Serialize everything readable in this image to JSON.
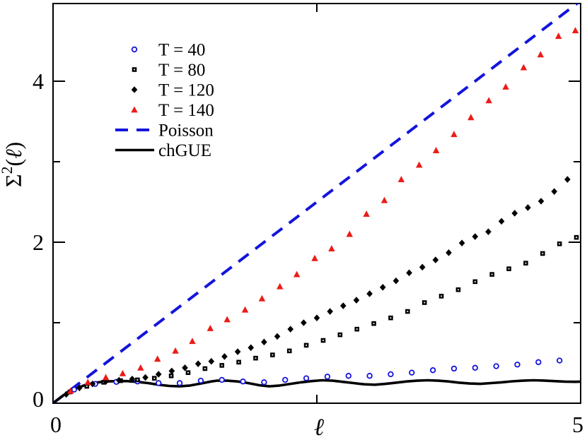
{
  "figure": {
    "background": "#ffffff",
    "description": "Number variance Sigma^2(l) versus l for Dirac spectra at several temperatures compared with Poisson and chGUE predictions"
  },
  "chart_data": {
    "type": "scatter",
    "title": "",
    "xlabel": "ℓ",
    "ylabel": "Σ²(ℓ)",
    "ylabel_parts": {
      "base": "Σ",
      "sup": "2",
      "rest": "(",
      "ell": "ℓ",
      "close": ")"
    },
    "xlim": [
      0,
      5
    ],
    "ylim": [
      0,
      4.965
    ],
    "grid": false,
    "axes": {
      "x_ticks": {
        "major": [
          0,
          5
        ],
        "major_labels": [
          "0",
          "5"
        ],
        "minor": [
          2.5
        ]
      },
      "y_ticks": {
        "major": [
          0,
          2,
          4
        ],
        "major_labels": [
          "0",
          "2",
          "4"
        ],
        "minor": [
          1,
          3
        ]
      },
      "mirror_ticks": true
    },
    "colors": {
      "blue": "#1414dd",
      "red": "#ec1b17",
      "black": "#000000"
    },
    "legend": {
      "position": "upper-left"
    },
    "series": [
      {
        "name": "T = 40",
        "type": "scatter",
        "marker": "circle-open",
        "color": "#1414dd",
        "points": [
          [
            0.2,
            0.17
          ],
          [
            0.4,
            0.24
          ],
          [
            0.6,
            0.265
          ],
          [
            0.8,
            0.27
          ],
          [
            1.0,
            0.25
          ],
          [
            1.2,
            0.25
          ],
          [
            1.4,
            0.28
          ],
          [
            1.6,
            0.29
          ],
          [
            1.8,
            0.27
          ],
          [
            2.0,
            0.26
          ],
          [
            2.2,
            0.29
          ],
          [
            2.4,
            0.31
          ],
          [
            2.6,
            0.33
          ],
          [
            2.8,
            0.34
          ],
          [
            3.0,
            0.34
          ],
          [
            3.2,
            0.36
          ],
          [
            3.4,
            0.38
          ],
          [
            3.6,
            0.41
          ],
          [
            3.8,
            0.43
          ],
          [
            4.0,
            0.44
          ],
          [
            4.2,
            0.46
          ],
          [
            4.4,
            0.48
          ],
          [
            4.6,
            0.51
          ],
          [
            4.8,
            0.53
          ]
        ]
      },
      {
        "name": "T = 80",
        "type": "scatter",
        "marker": "square",
        "color": "#000000",
        "points": [
          [
            0.16,
            0.14
          ],
          [
            0.32,
            0.21
          ],
          [
            0.48,
            0.26
          ],
          [
            0.64,
            0.28
          ],
          [
            0.8,
            0.29
          ],
          [
            0.96,
            0.31
          ],
          [
            1.12,
            0.34
          ],
          [
            1.28,
            0.38
          ],
          [
            1.44,
            0.43
          ],
          [
            1.6,
            0.47
          ],
          [
            1.76,
            0.51
          ],
          [
            1.92,
            0.56
          ],
          [
            2.08,
            0.6
          ],
          [
            2.24,
            0.65
          ],
          [
            2.4,
            0.72
          ],
          [
            2.56,
            0.78
          ],
          [
            2.72,
            0.85
          ],
          [
            2.88,
            0.92
          ],
          [
            3.04,
            0.99
          ],
          [
            3.2,
            1.06
          ],
          [
            3.36,
            1.14
          ],
          [
            3.52,
            1.25
          ],
          [
            3.68,
            1.33
          ],
          [
            3.84,
            1.41
          ],
          [
            4.0,
            1.51
          ],
          [
            4.16,
            1.6
          ],
          [
            4.32,
            1.67
          ],
          [
            4.48,
            1.74
          ],
          [
            4.64,
            1.86
          ],
          [
            4.8,
            1.98
          ],
          [
            4.96,
            2.06
          ]
        ]
      },
      {
        "name": "T = 120",
        "type": "scatter",
        "marker": "diamond",
        "color": "#000000",
        "points": [
          [
            0.125,
            0.11
          ],
          [
            0.25,
            0.19
          ],
          [
            0.375,
            0.24
          ],
          [
            0.5,
            0.27
          ],
          [
            0.625,
            0.285
          ],
          [
            0.75,
            0.3
          ],
          [
            0.875,
            0.32
          ],
          [
            1.0,
            0.36
          ],
          [
            1.125,
            0.4
          ],
          [
            1.25,
            0.44
          ],
          [
            1.375,
            0.49
          ],
          [
            1.5,
            0.52
          ],
          [
            1.625,
            0.58
          ],
          [
            1.75,
            0.64
          ],
          [
            1.875,
            0.69
          ],
          [
            2.0,
            0.76
          ],
          [
            2.125,
            0.83
          ],
          [
            2.25,
            0.92
          ],
          [
            2.375,
            1.0
          ],
          [
            2.5,
            1.06
          ],
          [
            2.625,
            1.14
          ],
          [
            2.75,
            1.21
          ],
          [
            2.875,
            1.28
          ],
          [
            3.0,
            1.36
          ],
          [
            3.125,
            1.44
          ],
          [
            3.25,
            1.52
          ],
          [
            3.375,
            1.62
          ],
          [
            3.5,
            1.69
          ],
          [
            3.625,
            1.78
          ],
          [
            3.75,
            1.87
          ],
          [
            3.875,
            1.99
          ],
          [
            4.0,
            2.07
          ],
          [
            4.125,
            2.13
          ],
          [
            4.25,
            2.26
          ],
          [
            4.375,
            2.36
          ],
          [
            4.5,
            2.43
          ],
          [
            4.625,
            2.51
          ],
          [
            4.75,
            2.63
          ],
          [
            4.875,
            2.78
          ]
        ]
      },
      {
        "name": "T = 140",
        "type": "scatter",
        "marker": "triangle-up",
        "color": "#ec1b17",
        "points": [
          [
            0.165,
            0.15
          ],
          [
            0.33,
            0.26
          ],
          [
            0.5,
            0.32
          ],
          [
            0.66,
            0.37
          ],
          [
            0.83,
            0.44
          ],
          [
            0.99,
            0.55
          ],
          [
            1.16,
            0.65
          ],
          [
            1.32,
            0.77
          ],
          [
            1.49,
            0.93
          ],
          [
            1.65,
            1.04
          ],
          [
            1.82,
            1.16
          ],
          [
            1.98,
            1.3
          ],
          [
            2.15,
            1.45
          ],
          [
            2.31,
            1.6
          ],
          [
            2.48,
            1.8
          ],
          [
            2.64,
            1.92
          ],
          [
            2.81,
            2.1
          ],
          [
            2.97,
            2.35
          ],
          [
            3.14,
            2.52
          ],
          [
            3.3,
            2.78
          ],
          [
            3.47,
            2.96
          ],
          [
            3.63,
            3.14
          ],
          [
            3.8,
            3.34
          ],
          [
            3.96,
            3.55
          ],
          [
            4.13,
            3.76
          ],
          [
            4.29,
            3.93
          ],
          [
            4.46,
            4.17
          ],
          [
            4.62,
            4.33
          ],
          [
            4.79,
            4.56
          ],
          [
            4.95,
            4.63
          ]
        ]
      },
      {
        "name": "Poisson",
        "type": "line",
        "style": "dashed",
        "color": "#1414dd",
        "points": [
          [
            0,
            0
          ],
          [
            5,
            5
          ]
        ]
      },
      {
        "name": "chGUE",
        "type": "line",
        "style": "solid",
        "color": "#000000",
        "points": [
          [
            0,
            0
          ],
          [
            0.05,
            0.05
          ],
          [
            0.1,
            0.1
          ],
          [
            0.15,
            0.145
          ],
          [
            0.2,
            0.175
          ],
          [
            0.3,
            0.225
          ],
          [
            0.4,
            0.255
          ],
          [
            0.5,
            0.27
          ],
          [
            0.6,
            0.275
          ],
          [
            0.7,
            0.275
          ],
          [
            0.8,
            0.265
          ],
          [
            0.9,
            0.25
          ],
          [
            1.0,
            0.23
          ],
          [
            1.1,
            0.215
          ],
          [
            1.2,
            0.21
          ],
          [
            1.3,
            0.22
          ],
          [
            1.4,
            0.245
          ],
          [
            1.5,
            0.27
          ],
          [
            1.55,
            0.28
          ],
          [
            1.65,
            0.28
          ],
          [
            1.75,
            0.27
          ],
          [
            1.85,
            0.25
          ],
          [
            1.95,
            0.225
          ],
          [
            2.05,
            0.21
          ],
          [
            2.15,
            0.22
          ],
          [
            2.25,
            0.24
          ],
          [
            2.35,
            0.26
          ],
          [
            2.45,
            0.275
          ],
          [
            2.55,
            0.285
          ],
          [
            2.65,
            0.28
          ],
          [
            2.75,
            0.265
          ],
          [
            2.85,
            0.25
          ],
          [
            2.95,
            0.235
          ],
          [
            3.05,
            0.23
          ],
          [
            3.15,
            0.24
          ],
          [
            3.25,
            0.255
          ],
          [
            3.35,
            0.27
          ],
          [
            3.45,
            0.28
          ],
          [
            3.55,
            0.285
          ],
          [
            3.65,
            0.28
          ],
          [
            3.75,
            0.27
          ],
          [
            3.85,
            0.255
          ],
          [
            3.95,
            0.245
          ],
          [
            4.05,
            0.24
          ],
          [
            4.15,
            0.25
          ],
          [
            4.25,
            0.26
          ],
          [
            4.35,
            0.272
          ],
          [
            4.45,
            0.28
          ],
          [
            4.55,
            0.285
          ],
          [
            4.65,
            0.282
          ],
          [
            4.75,
            0.275
          ],
          [
            4.85,
            0.268
          ],
          [
            4.95,
            0.266
          ],
          [
            5.0,
            0.268
          ]
        ]
      }
    ]
  }
}
